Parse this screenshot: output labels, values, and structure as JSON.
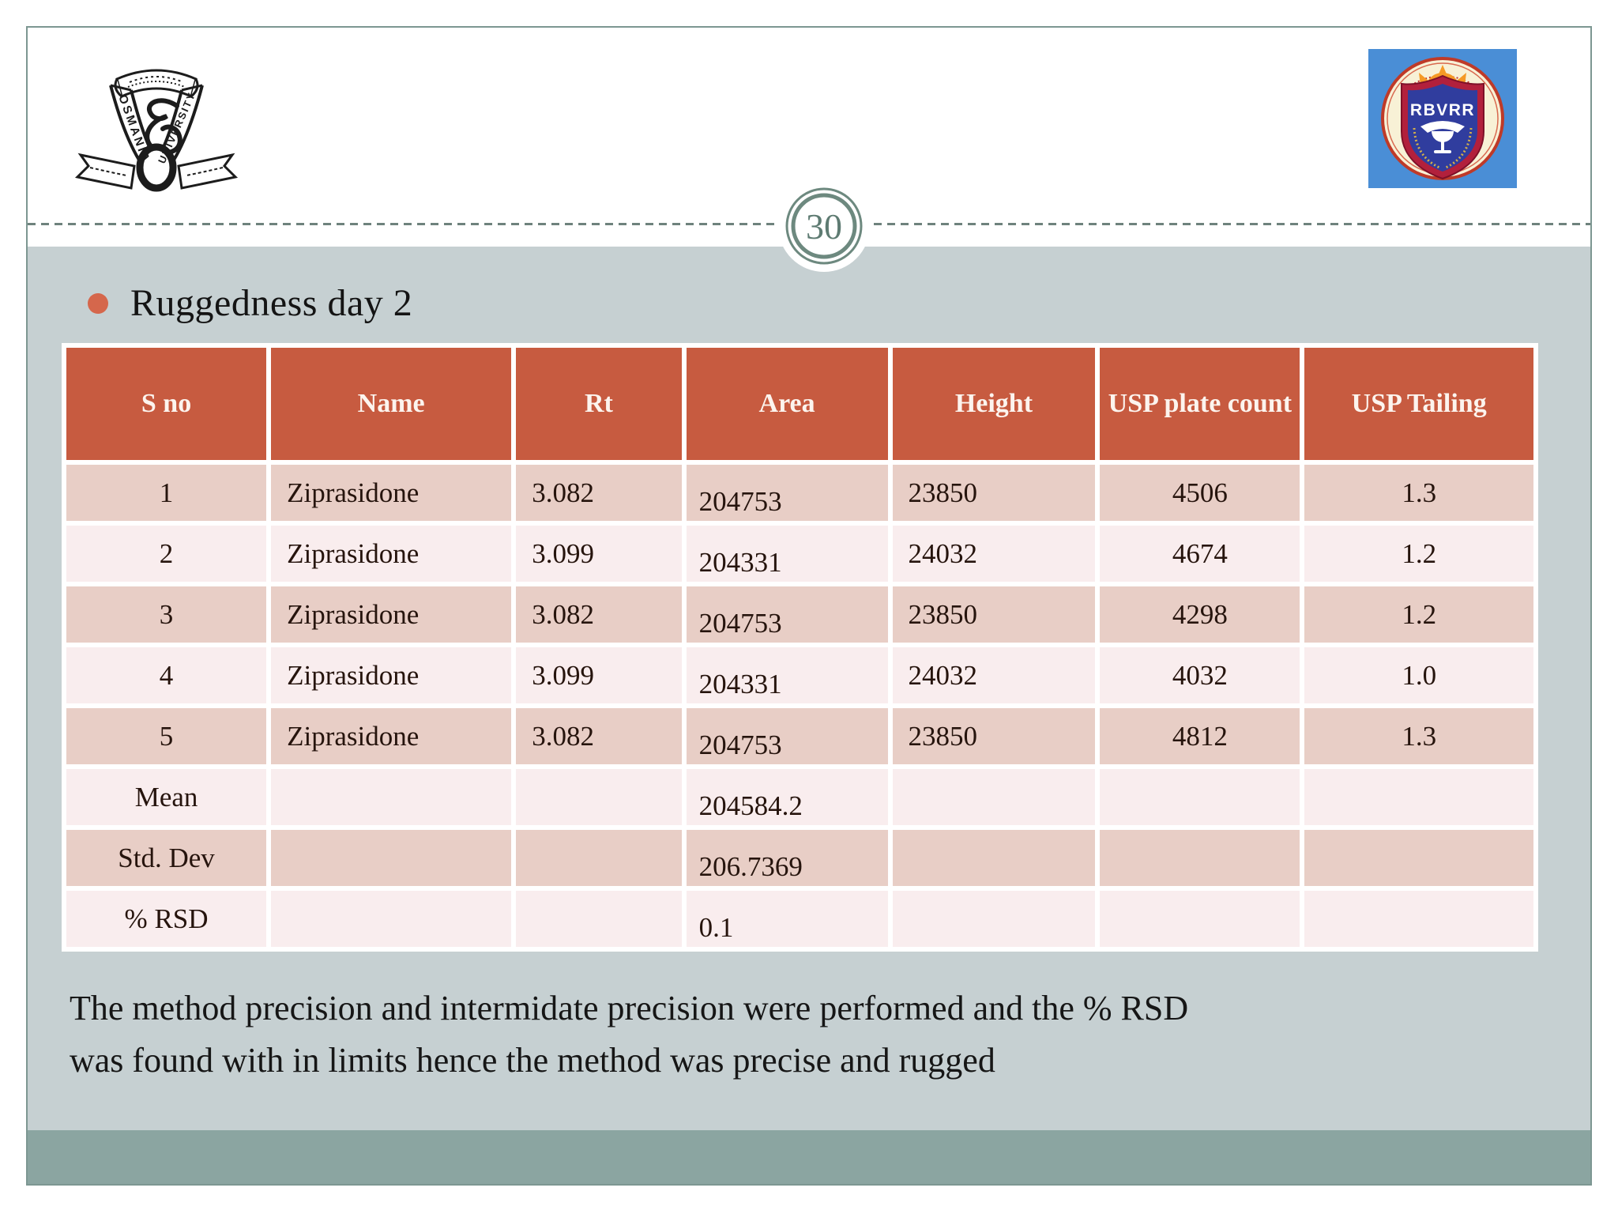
{
  "slide": {
    "page_number": "30",
    "bullet_title": "Ruggedness day 2",
    "footer_lines": [
      "The method precision and intermidate precision were performed and the % RSD",
      "was found with in limits hence the method was precise and  rugged"
    ]
  },
  "logos": {
    "osmania": {
      "word_left": "OSMANIA",
      "word_right": "UNIVERSITY"
    },
    "rbvrr": {
      "acronym": "RBVRR"
    }
  },
  "table": {
    "columns": [
      "S no",
      "Name",
      "Rt",
      "Area",
      "Height",
      "USP plate count",
      "USP Tailing"
    ],
    "rows": [
      [
        "1",
        "Ziprasidone",
        "3.082",
        "204753",
        "23850",
        "4506",
        "1.3"
      ],
      [
        "2",
        "Ziprasidone",
        "3.099",
        "204331",
        "24032",
        "4674",
        "1.2"
      ],
      [
        "3",
        "Ziprasidone",
        "3.082",
        "204753",
        "23850",
        "4298",
        "1.2"
      ],
      [
        "4",
        "Ziprasidone",
        "3.099",
        "204331",
        "24032",
        "4032",
        "1.0"
      ],
      [
        "5",
        "Ziprasidone",
        "3.082",
        "204753",
        "23850",
        "4812",
        "1.3"
      ],
      [
        "Mean",
        "",
        "",
        "204584.2",
        "",
        "",
        ""
      ],
      [
        "Std. Dev",
        "",
        "",
        "206.7369",
        "",
        "",
        ""
      ],
      [
        "% RSD",
        "",
        "",
        "0.1",
        "",
        "",
        ""
      ]
    ]
  },
  "colors": {
    "header_bg": "#c75b40",
    "row_dark": "#e8cec6",
    "row_light": "#f9edee",
    "content_bg": "#c6d0d2",
    "footer_band": "#8ba5a1",
    "accent": "#d5674c",
    "ring": "#6d897f"
  }
}
